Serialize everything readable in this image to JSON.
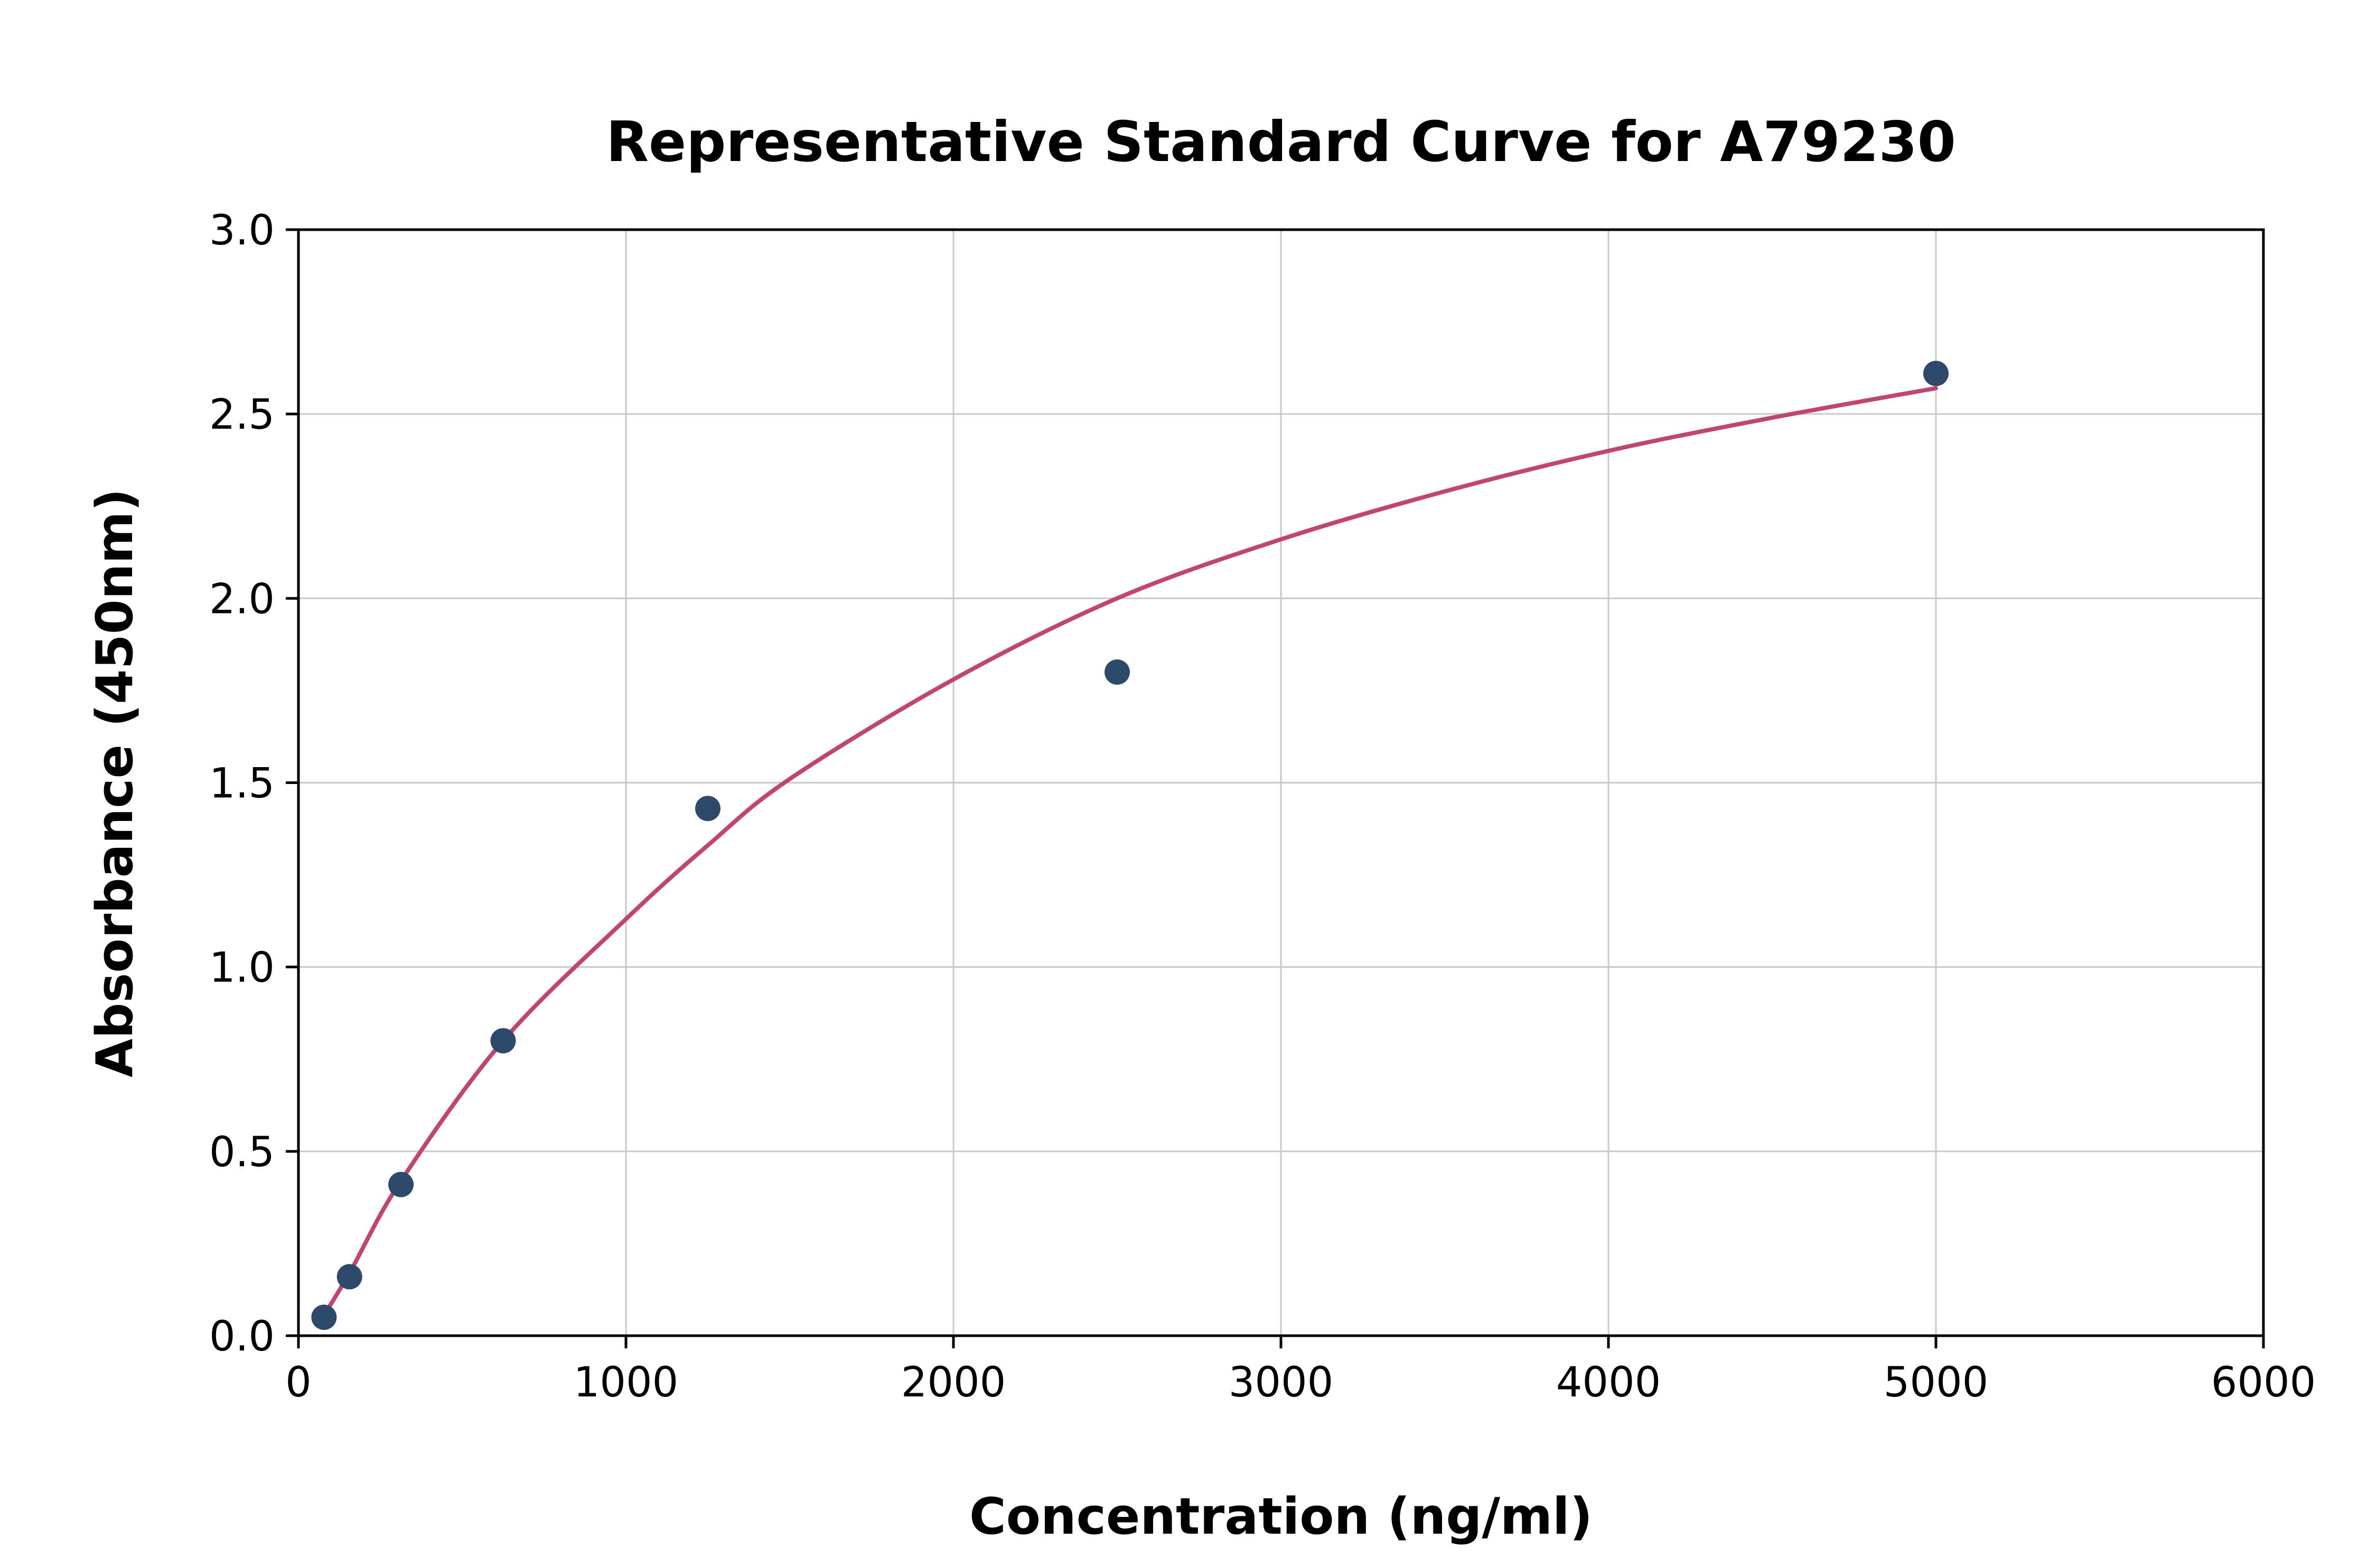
{
  "chart_data": {
    "type": "scatter",
    "title": "Representative Standard Curve for A79230",
    "xlabel": "Concentration (ng/ml)",
    "ylabel": "Absorbance (450nm)",
    "xlim": [
      0,
      6000
    ],
    "ylim": [
      0,
      3
    ],
    "x_ticks": [
      0,
      1000,
      2000,
      3000,
      4000,
      5000,
      6000
    ],
    "y_ticks": [
      0,
      0.5,
      1,
      1.5,
      2,
      2.5,
      3
    ],
    "grid": true,
    "legend_position": "none",
    "colors": {
      "points": "#2e4a6b",
      "curve": "#c2456f",
      "grid": "#c9c9c9",
      "axis": "#000000",
      "background": "#ffffff"
    },
    "series": [
      {
        "name": "standard-points",
        "type": "scatter",
        "color": "#2e4a6b",
        "points": [
          [
            78,
            0.05
          ],
          [
            156,
            0.16
          ],
          [
            313,
            0.41
          ],
          [
            625,
            0.8
          ],
          [
            1250,
            1.43
          ],
          [
            2500,
            1.8
          ],
          [
            5000,
            2.61
          ]
        ]
      },
      {
        "name": "fitted-curve",
        "type": "line",
        "color": "#c2456f",
        "points": [
          [
            60,
            0.03
          ],
          [
            156,
            0.17
          ],
          [
            313,
            0.42
          ],
          [
            625,
            0.8
          ],
          [
            1000,
            1.13
          ],
          [
            1250,
            1.33
          ],
          [
            1500,
            1.51
          ],
          [
            2000,
            1.78
          ],
          [
            2500,
            2.0
          ],
          [
            3000,
            2.16
          ],
          [
            3500,
            2.29
          ],
          [
            4000,
            2.4
          ],
          [
            4500,
            2.49
          ],
          [
            5000,
            2.57
          ]
        ]
      }
    ]
  }
}
